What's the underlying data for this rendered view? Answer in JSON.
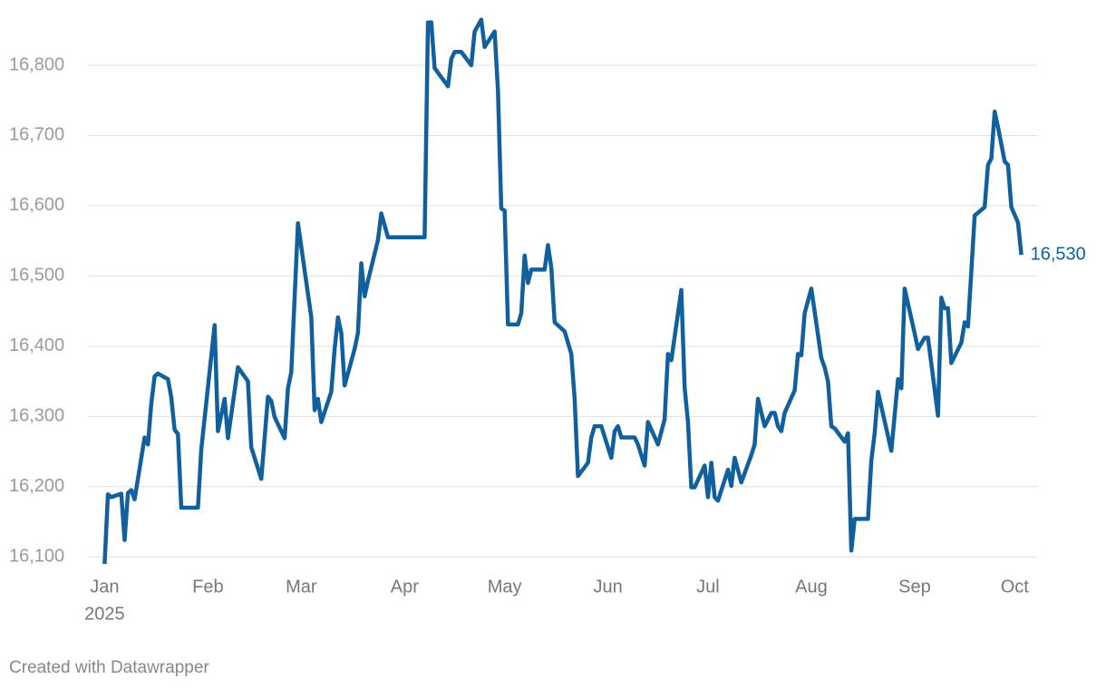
{
  "chart_data": {
    "type": "line",
    "x": [
      0,
      1,
      2,
      5,
      6,
      7,
      8,
      9,
      12,
      13,
      14,
      15,
      16,
      19,
      20,
      21,
      22,
      23,
      28,
      29,
      33,
      34,
      36,
      37,
      40,
      43,
      44,
      47,
      49,
      50,
      51,
      54,
      55,
      56,
      58,
      62,
      63,
      64,
      65,
      68,
      69,
      70,
      71,
      72,
      75,
      76,
      77,
      78,
      79,
      82,
      83,
      85,
      96,
      97,
      98,
      99,
      103,
      104,
      105,
      107,
      110,
      111,
      113,
      114,
      117,
      118,
      119,
      120,
      121,
      124,
      125,
      126,
      127,
      128,
      132,
      133,
      134,
      135,
      138,
      140,
      141,
      142,
      145,
      146,
      147,
      149,
      152,
      153,
      154,
      155,
      159,
      160,
      162,
      163,
      166,
      168,
      169,
      170,
      173,
      174,
      175,
      176,
      177,
      180,
      181,
      182,
      183,
      184,
      187,
      188,
      189,
      191,
      194,
      195,
      196,
      198,
      200,
      201,
      202,
      203,
      204,
      207,
      208,
      209,
      210,
      212,
      215,
      216,
      217,
      218,
      219,
      222,
      223,
      224,
      225,
      229,
      230,
      231,
      232,
      236,
      238,
      239,
      240,
      243,
      244,
      246,
      247,
      250,
      251,
      252,
      253,
      254,
      257,
      258,
      259,
      261,
      264,
      265,
      266,
      267,
      268,
      270,
      271,
      272,
      274,
      275
    ],
    "series": [
      {
        "color": "#11609e",
        "values": [
          16090,
          16189,
          16185,
          16190,
          16124,
          16191,
          16195,
          16182,
          16270,
          16260,
          16318,
          16357,
          16361,
          16353,
          16327,
          16281,
          16275,
          16170,
          16170,
          16253,
          16430,
          16279,
          16325,
          16269,
          16370,
          16350,
          16256,
          16211,
          16328,
          16322,
          16299,
          16269,
          16340,
          16363,
          16575,
          16441,
          16309,
          16325,
          16292,
          16335,
          16396,
          16441,
          16419,
          16344,
          16396,
          16419,
          16518,
          16471,
          16493,
          16551,
          16589,
          16555,
          16555,
          16861,
          16861,
          16796,
          16770,
          16809,
          16819,
          16819,
          16800,
          16848,
          16865,
          16826,
          16848,
          16764,
          16596,
          16593,
          16431,
          16431,
          16447,
          16529,
          16490,
          16509,
          16509,
          16544,
          16512,
          16434,
          16421,
          16389,
          16325,
          16215,
          16234,
          16270,
          16286,
          16286,
          16241,
          16279,
          16286,
          16270,
          16270,
          16260,
          16230,
          16292,
          16260,
          16296,
          16389,
          16380,
          16480,
          16341,
          16292,
          16199,
          16199,
          16230,
          16185,
          16234,
          16185,
          16180,
          16224,
          16201,
          16241,
          16206,
          16245,
          16260,
          16325,
          16286,
          16305,
          16305,
          16286,
          16279,
          16305,
          16337,
          16389,
          16387,
          16447,
          16482,
          16383,
          16370,
          16350,
          16286,
          16283,
          16264,
          16276,
          16109,
          16154,
          16154,
          16237,
          16276,
          16335,
          16251,
          16353,
          16340,
          16482,
          16418,
          16396,
          16412,
          16412,
          16301,
          16469,
          16454,
          16454,
          16376,
          16405,
          16434,
          16428,
          16586,
          16598,
          16658,
          16667,
          16734,
          16712,
          16663,
          16658,
          16598,
          16576,
          16530
        ],
        "value_labels": [
          null,
          null,
          null,
          null,
          null,
          null,
          null,
          null,
          null,
          null,
          null,
          null,
          null,
          null,
          null,
          null,
          null,
          null,
          null,
          null,
          null,
          null,
          null,
          null,
          null,
          null,
          null,
          null,
          null,
          null,
          null,
          null,
          null,
          null,
          null,
          null,
          null,
          null,
          null,
          null,
          null,
          null,
          null,
          null,
          null,
          null,
          null,
          null,
          null,
          null,
          null,
          null,
          null,
          null,
          null,
          null,
          null,
          null,
          null,
          null,
          null,
          null,
          null,
          null,
          null,
          null,
          null,
          null,
          null,
          null,
          null,
          null,
          null,
          null,
          null,
          null,
          null,
          null,
          null,
          null,
          null,
          null,
          null,
          null,
          null,
          null,
          null,
          null,
          null,
          null,
          null,
          null,
          null,
          null,
          null,
          null,
          null,
          null,
          null,
          null,
          null,
          null,
          null,
          null,
          null,
          null,
          null,
          null,
          null,
          null,
          null,
          null,
          null,
          null,
          null,
          null,
          null,
          null,
          null,
          null,
          null,
          null,
          null,
          null,
          null,
          null,
          null,
          null,
          null,
          null,
          null,
          null,
          null,
          null,
          null,
          null,
          null,
          null,
          null,
          null,
          null,
          null,
          null,
          null,
          null,
          null,
          null,
          null,
          null,
          null,
          null,
          null,
          null,
          null,
          null,
          null,
          null,
          null,
          null,
          null,
          null,
          null,
          null,
          null,
          null,
          "16,530"
        ]
      }
    ],
    "xlim": [
      -5,
      280
    ],
    "xticks": [
      {
        "value": 0,
        "label": "Jan"
      },
      {
        "value": 31,
        "label": "Feb"
      },
      {
        "value": 59,
        "label": "Mar"
      },
      {
        "value": 90,
        "label": "Apr"
      },
      {
        "value": 120,
        "label": "May"
      },
      {
        "value": 151,
        "label": "Jun"
      },
      {
        "value": 181,
        "label": "Jul"
      },
      {
        "value": 212,
        "label": "Aug"
      },
      {
        "value": 243,
        "label": "Sep"
      },
      {
        "value": 273,
        "label": "Oct"
      }
    ],
    "x_year_label": "2025",
    "ylim": [
      16090,
      16880
    ],
    "yticks": [
      {
        "value": 16100,
        "label": "16,100"
      },
      {
        "value": 16200,
        "label": "16,200"
      },
      {
        "value": 16300,
        "label": "16,300"
      },
      {
        "value": 16400,
        "label": "16,400"
      },
      {
        "value": 16500,
        "label": "16,500"
      },
      {
        "value": 16600,
        "label": "16,600"
      },
      {
        "value": 16700,
        "label": "16,700"
      },
      {
        "value": 16800,
        "label": "16,800"
      }
    ],
    "grid": true
  },
  "credit": "Created with Datawrapper"
}
